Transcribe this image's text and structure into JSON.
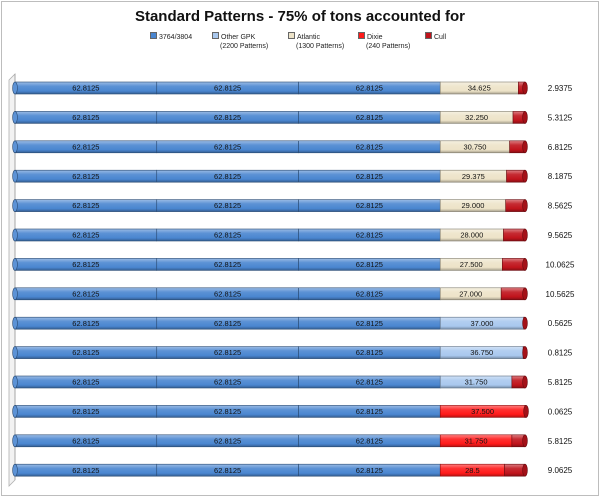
{
  "chart_data": {
    "type": "bar",
    "orientation": "horizontal",
    "stacked": true,
    "title": "Standard Patterns - 75% of tons accounted for",
    "legend": [
      {
        "name": "3764/3804",
        "sub": "",
        "color": "#4a86d0"
      },
      {
        "name": "Other GPK",
        "sub": "(2200 Patterns)",
        "color": "#a9c8ee"
      },
      {
        "name": "Atlantic",
        "sub": "(1300 Patterns)",
        "color": "#ede3c8"
      },
      {
        "name": "Dixie",
        "sub": "(240 Patterns)",
        "color": "#ff1a1a"
      },
      {
        "name": "Cull",
        "sub": "",
        "color": "#c0141c"
      }
    ],
    "segment_colors": {
      "base": "#4a86d0",
      "cream": "#ede3c8",
      "lightblue": "#a9c8ee",
      "red": "#ff1a1a",
      "darkred": "#c0141c"
    },
    "rows": [
      {
        "base": [
          "62.8125",
          "62.8125",
          "62.8125"
        ],
        "fourth": {
          "value": 34.625,
          "label": "34.625",
          "color": "cream"
        },
        "cull": {
          "value": 2.9375,
          "label": "2.9375"
        }
      },
      {
        "base": [
          "62.8125",
          "62.8125",
          "62.8125"
        ],
        "fourth": {
          "value": 32.25,
          "label": "32.250",
          "color": "cream"
        },
        "cull": {
          "value": 5.3125,
          "label": "5.3125"
        }
      },
      {
        "base": [
          "62.8125",
          "62.8125",
          "62.8125"
        ],
        "fourth": {
          "value": 30.75,
          "label": "30.750",
          "color": "cream"
        },
        "cull": {
          "value": 6.8125,
          "label": "6.8125"
        }
      },
      {
        "base": [
          "62.8125",
          "62.8125",
          "62.8125"
        ],
        "fourth": {
          "value": 29.375,
          "label": "29.375",
          "color": "cream"
        },
        "cull": {
          "value": 8.1875,
          "label": "8.1875"
        }
      },
      {
        "base": [
          "62.8125",
          "62.8125",
          "62.8125"
        ],
        "fourth": {
          "value": 29.0,
          "label": "29.000",
          "color": "cream"
        },
        "cull": {
          "value": 8.5625,
          "label": "8.5625"
        }
      },
      {
        "base": [
          "62.8125",
          "62.8125",
          "62.8125"
        ],
        "fourth": {
          "value": 28.0,
          "label": "28.000",
          "color": "cream"
        },
        "cull": {
          "value": 9.5625,
          "label": "9.5625"
        }
      },
      {
        "base": [
          "62.8125",
          "62.8125",
          "62.8125"
        ],
        "fourth": {
          "value": 27.5,
          "label": "27.500",
          "color": "cream"
        },
        "cull": {
          "value": 10.0625,
          "label": "10.0625"
        }
      },
      {
        "base": [
          "62.8125",
          "62.8125",
          "62.8125"
        ],
        "fourth": {
          "value": 27.0,
          "label": "27.000",
          "color": "cream"
        },
        "cull": {
          "value": 10.5625,
          "label": "10.5625"
        }
      },
      {
        "base": [
          "62.8125",
          "62.8125",
          "62.8125"
        ],
        "fourth": {
          "value": 37.0,
          "label": "37.000",
          "color": "lightblue"
        },
        "cull": {
          "value": 0.5625,
          "label": "0.5625"
        }
      },
      {
        "base": [
          "62.8125",
          "62.8125",
          "62.8125"
        ],
        "fourth": {
          "value": 36.75,
          "label": "36.750",
          "color": "lightblue"
        },
        "cull": {
          "value": 0.8125,
          "label": "0.8125"
        }
      },
      {
        "base": [
          "62.8125",
          "62.8125",
          "62.8125"
        ],
        "fourth": {
          "value": 31.75,
          "label": "31.750",
          "color": "lightblue"
        },
        "cull": {
          "value": 5.8125,
          "label": "5.8125"
        }
      },
      {
        "base": [
          "62.8125",
          "62.8125",
          "62.8125"
        ],
        "fourth": {
          "value": 37.5,
          "label": "37.500",
          "color": "red"
        },
        "cull": {
          "value": 0.0625,
          "label": "0.0625"
        }
      },
      {
        "base": [
          "62.8125",
          "62.8125",
          "62.8125"
        ],
        "fourth": {
          "value": 31.75,
          "label": "31.750",
          "color": "red"
        },
        "cull": {
          "value": 5.8125,
          "label": "5.8125"
        }
      },
      {
        "base": [
          "62.8125",
          "62.8125",
          "62.8125"
        ],
        "fourth": {
          "value": 28.5,
          "label": "28.5",
          "color": "red"
        },
        "cull": {
          "value": 9.0625,
          "label": "9.0625"
        }
      }
    ]
  }
}
